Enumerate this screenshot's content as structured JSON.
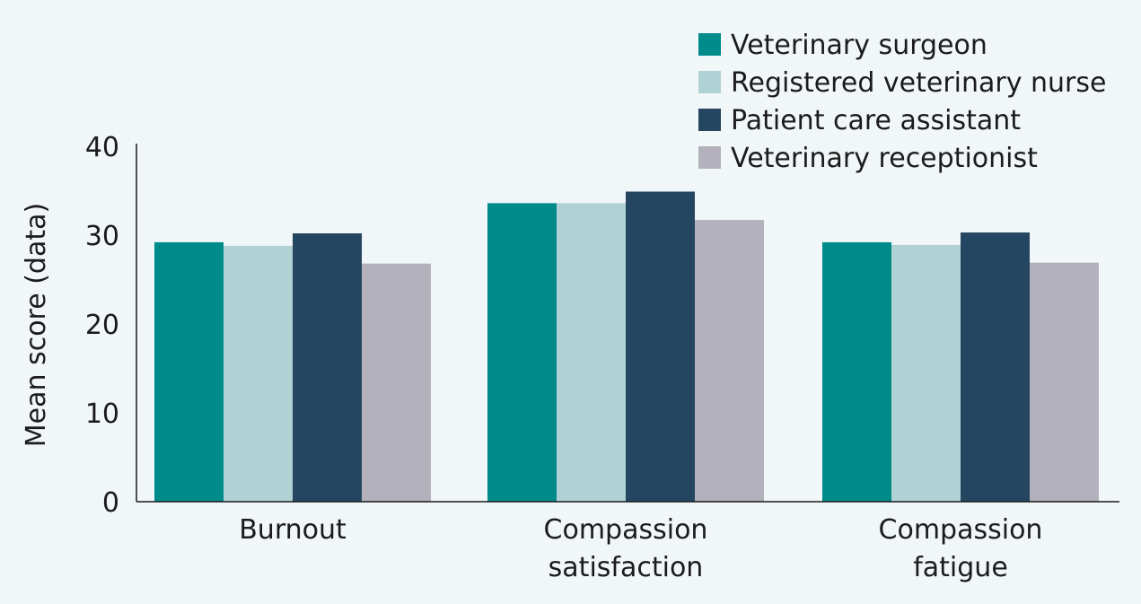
{
  "chart_data": {
    "type": "bar",
    "title": "",
    "xlabel": "",
    "ylabel": "Mean score (data)",
    "ylim": [
      0,
      40
    ],
    "yticks": [
      0,
      10,
      20,
      30,
      40
    ],
    "grid": false,
    "legend_position": "top-right",
    "categories": [
      [
        "Burnout"
      ],
      [
        "Compassion",
        "satisfaction"
      ],
      [
        "Compassion",
        "fatigue"
      ]
    ],
    "series": [
      {
        "name": "Veterinary surgeon",
        "color": "#008b8b",
        "values": [
          29.2,
          33.6,
          29.2
        ]
      },
      {
        "name": "Registered veterinary nurse",
        "color": "#b1d2d4",
        "values": [
          28.8,
          33.6,
          28.9
        ]
      },
      {
        "name": "Patient care assistant",
        "color": "#244660",
        "values": [
          30.2,
          34.9,
          30.3
        ]
      },
      {
        "name": "Veterinary receptionist",
        "color": "#b2b1bc",
        "values": [
          26.8,
          31.7,
          26.9
        ]
      }
    ]
  }
}
